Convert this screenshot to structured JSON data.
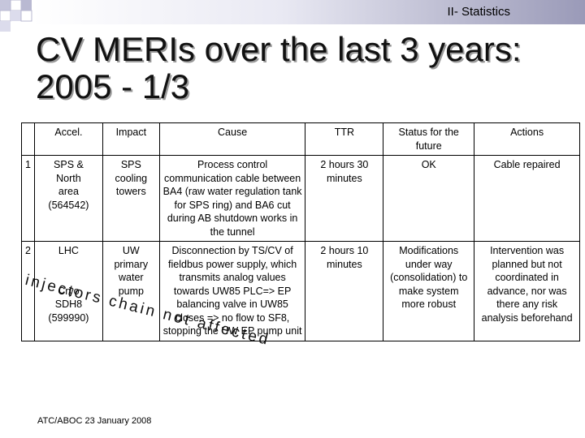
{
  "header": {
    "section": "II- Statistics"
  },
  "title": {
    "line1": "CV MERIs over the last 3 years:",
    "line2": "2005 - 1/3"
  },
  "table": {
    "columns": [
      "Accel.",
      "Impact",
      "Cause",
      "TTR",
      "Status for the future",
      "Actions"
    ],
    "rows": [
      {
        "num": "1",
        "accel": [
          "SPS &",
          "North",
          "area",
          "(564542)"
        ],
        "impact": "SPS cooling towers",
        "cause": "Process control communication cable between BA4 (raw water regulation tank for SPS ring) and BA6 cut during AB shutdown works in the tunnel",
        "ttr": "2 hours 30 minutes",
        "status": "OK",
        "actions": "Cable repaired"
      },
      {
        "num": "2",
        "accel": [
          "LHC",
          "",
          "",
          "Cryo",
          "SDH8",
          "(599990)"
        ],
        "impact": "UW primary water pump",
        "cause": "Disconnection by TS/CV of fieldbus power supply, which transmits analog values towards UW85 PLC=> EP balancing valve in UW85 closes => no flow to SF8, stopping the UW EP pump unit",
        "ttr": "2 hours 10 minutes",
        "status": "Modifications under way (consolidation) to make system more robust",
        "actions": "Intervention was planned but not coordinated in advance, nor was there any risk analysis beforehand"
      }
    ]
  },
  "overlay_text": "injectors chain not affected",
  "footer": "ATC/ABOC 23 January 2008",
  "colors": {
    "square_light": "#dcdcec",
    "square_mid": "#b9b9d2",
    "gradient_end": "#9a9ab8"
  }
}
